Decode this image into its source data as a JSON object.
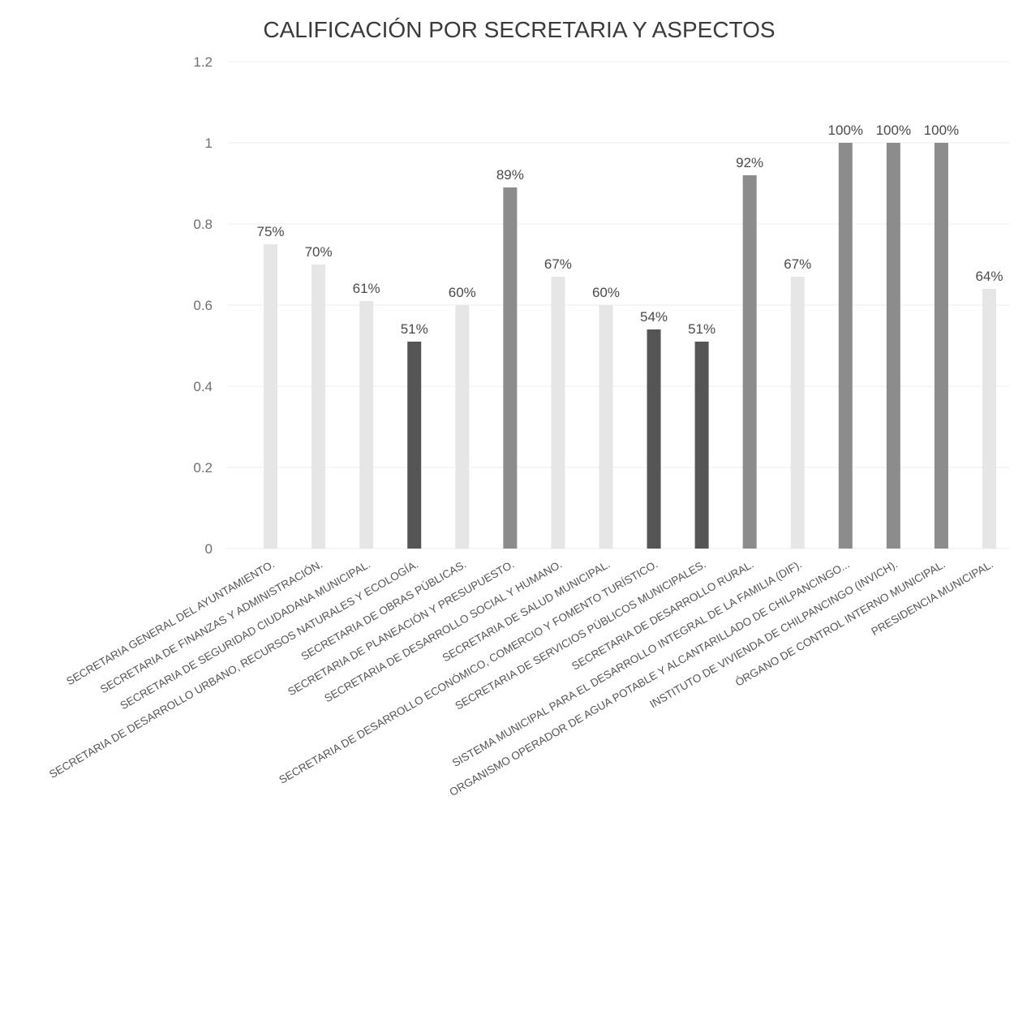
{
  "chart_data": {
    "type": "bar",
    "title": "CALIFICACIÓN POR SECRETARIA Y ASPECTOS",
    "xlabel": "",
    "ylabel": "",
    "ylim": [
      0,
      1.2
    ],
    "yticks": [
      "0",
      "0.2",
      "0.4",
      "0.6",
      "0.8",
      "1",
      "1.2"
    ],
    "grid": true,
    "legend": "none",
    "categories": [
      "SECRETARIA GENERAL DEL AYUNTAMIENTO.",
      "SECRETARIA DE FINANZAS Y ADMINISTRACIÓN.",
      "SECRETARIA DE SEGURIDAD CIUDADANA MUNICIPAL.",
      "SECRETARIA DE DESARROLLO URBANO, RECURSOS NATURALES Y ECOLOGÍA.",
      "SECRETARIA DE OBRAS PÚBLICAS.",
      "SECRETARIA DE PLANEACIÓN Y PRESUPUESTO.",
      "SECRETARIA DE DESARROLLO SOCIAL Y HUMANO.",
      "SECRETARIA DE SALUD MUNICIPAL.",
      "SECRETARIA DE DESARROLLO ECONÓMICO, COMERCIO Y FOMENTO TURÍSTICO.",
      "SECRETARIA DE SERVICIOS PÚBLICOS MUNICIPALES.",
      "SECRETARIA DE DESARROLLO RURAL.",
      "SISTEMA MUNICIPAL PARA EL DESARROLLO INTEGRAL DE LA FAMILIA (DIF).",
      "ORGANISMO OPERADOR DE AGUA POTABLE Y ALCANTARILLADO DE CHILPANCINGO...",
      "INSTITUTO DE VIVIENDA DE CHILPANCINGO (INVICH).",
      "ÓRGANO DE CONTROL INTERNO MUNICIPAL.",
      "PRESIDENCIA MUNICIPAL."
    ],
    "values": [
      0.75,
      0.7,
      0.61,
      0.51,
      0.6,
      0.89,
      0.67,
      0.6,
      0.54,
      0.51,
      0.92,
      0.67,
      1.0,
      1.0,
      1.0,
      0.64
    ],
    "data_labels": [
      "75%",
      "70%",
      "61%",
      "51%",
      "60%",
      "89%",
      "67%",
      "60%",
      "54%",
      "51%",
      "92%",
      "67%",
      "100%",
      "100%",
      "100%",
      "64%"
    ],
    "bar_colors": [
      "#e6e6e6",
      "#e6e6e6",
      "#e6e6e6",
      "#555555",
      "#e6e6e6",
      "#8c8c8c",
      "#e6e6e6",
      "#e6e6e6",
      "#555555",
      "#555555",
      "#8c8c8c",
      "#e6e6e6",
      "#8c8c8c",
      "#8c8c8c",
      "#8c8c8c",
      "#e6e6e6"
    ]
  }
}
